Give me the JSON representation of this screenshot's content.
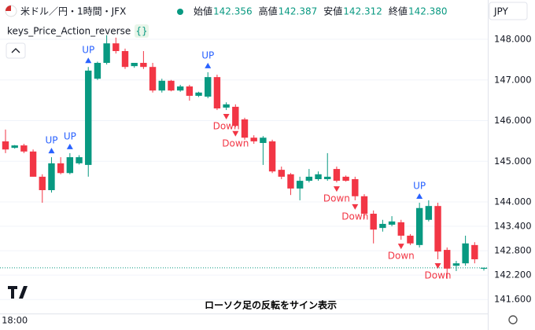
{
  "header": {
    "symbol": "米ドル／円・1時間・JFX",
    "currency": "JPY",
    "indicator": "keys_Price_Action_reverse",
    "indicator_badge": "{}",
    "caption": "ローソク足の反転をサイン表示"
  },
  "chart_data": {
    "type": "candlestick",
    "legend": {
      "labels": [
        "始値",
        "高値",
        "安値",
        "終値"
      ],
      "values": [
        142.356,
        142.387,
        142.312,
        142.38
      ],
      "value_labels": [
        "142.356",
        "142.387",
        "142.312",
        "142.380"
      ]
    },
    "categories": [
      null,
      "18:00",
      null,
      null,
      null,
      null,
      null,
      null,
      null,
      null,
      null,
      null,
      null,
      null,
      null,
      null,
      null,
      null,
      null,
      null,
      null,
      null,
      null,
      null,
      null,
      null,
      null,
      null,
      null,
      null,
      null,
      null,
      null,
      null,
      null,
      null,
      null,
      null,
      null,
      null,
      null,
      null,
      null,
      null,
      null,
      null,
      null,
      null,
      null,
      null,
      null,
      null,
      null
    ],
    "open": [
      145.49,
      145.33,
      145.39,
      145.24,
      144.62,
      144.29,
      144.95,
      144.71,
      144.95,
      144.91,
      147.03,
      147.42,
      147.9,
      147.71,
      147.34,
      147.42,
      147.32,
      146.74,
      146.98,
      146.74,
      146.84,
      146.61,
      146.59,
      147.07,
      146.32,
      146.34,
      146.03,
      145.58,
      145.45,
      145.49,
      144.79,
      144.68,
      144.33,
      144.52,
      144.56,
      144.56,
      144.81,
      144.62,
      144.56,
      144.14,
      143.71,
      143.36,
      143.44,
      143.5,
      143.17,
      142.94,
      143.56,
      143.9,
      142.82,
      142.43,
      142.49,
      142.94,
      142.356
    ],
    "high": [
      145.78,
      145.4,
      145.43,
      145.29,
      144.68,
      145.1,
      145.1,
      145.2,
      145.15,
      147.32,
      147.45,
      148.1,
      148.04,
      147.77,
      147.4,
      147.71,
      147.42,
      147.03,
      147.0,
      146.88,
      146.88,
      146.71,
      147.19,
      147.13,
      146.45,
      146.4,
      146.07,
      145.64,
      145.62,
      145.53,
      144.87,
      144.71,
      144.62,
      144.81,
      144.75,
      145.2,
      144.87,
      144.65,
      144.62,
      144.19,
      143.79,
      143.56,
      143.65,
      143.56,
      143.21,
      143.98,
      144.04,
      143.98,
      142.88,
      142.55,
      143.17,
      143.01,
      142.387
    ],
    "low": [
      145.2,
      145.31,
      145.2,
      144.62,
      143.98,
      144.23,
      144.68,
      144.68,
      144.92,
      144.62,
      147.0,
      147.38,
      147.65,
      147.27,
      147.3,
      147.27,
      146.69,
      146.69,
      146.72,
      146.71,
      146.49,
      146.58,
      146.55,
      146.26,
      146.26,
      145.84,
      145.53,
      145.43,
      144.91,
      144.71,
      144.56,
      144.17,
      144.04,
      144.48,
      144.52,
      144.52,
      144.48,
      144.5,
      144.04,
      143.59,
      142.98,
      143.27,
      143.4,
      143.07,
      142.94,
      142.88,
      143.52,
      142.59,
      142.11,
      142.3,
      142.43,
      142.49,
      142.312
    ],
    "close": [
      145.29,
      145.39,
      145.24,
      144.62,
      144.29,
      144.95,
      144.71,
      145.1,
      145.1,
      147.23,
      147.42,
      147.9,
      147.71,
      147.32,
      147.42,
      147.32,
      146.74,
      146.98,
      146.74,
      146.84,
      146.61,
      146.69,
      147.07,
      146.3,
      146.4,
      145.87,
      145.58,
      145.49,
      145.58,
      144.75,
      144.62,
      144.33,
      144.52,
      144.62,
      144.68,
      144.62,
      144.52,
      144.52,
      144.14,
      143.71,
      143.32,
      143.46,
      143.52,
      143.17,
      142.98,
      143.85,
      143.9,
      142.78,
      142.36,
      142.49,
      142.98,
      142.59,
      142.38
    ],
    "signals": [
      null,
      null,
      null,
      null,
      null,
      "UP",
      null,
      "UP",
      null,
      "UP",
      null,
      null,
      null,
      null,
      null,
      null,
      null,
      null,
      null,
      null,
      null,
      null,
      "UP",
      null,
      "Down",
      "Down",
      null,
      null,
      null,
      null,
      null,
      null,
      null,
      null,
      null,
      null,
      "Down",
      null,
      "Down",
      null,
      null,
      null,
      null,
      "Down",
      null,
      "UP",
      null,
      "Down",
      null,
      null,
      null,
      null,
      null
    ],
    "up_color": "#089981",
    "down_color": "#f23645",
    "up_signal_color": "#2962ff",
    "down_signal_color": "#f23645",
    "ylim": [
      141.2,
      148.4
    ],
    "yticks": [
      {
        "value": 148,
        "label": "148.000"
      },
      {
        "value": 147,
        "label": "147.000"
      },
      {
        "value": 146,
        "label": "146.000"
      },
      {
        "value": 145,
        "label": "145.000"
      },
      {
        "value": 144,
        "label": "144.000"
      },
      {
        "value": 143.4,
        "label": "143.400"
      },
      {
        "value": 142.8,
        "label": "142.800"
      },
      {
        "value": 142.2,
        "label": "142.200"
      },
      {
        "value": 141.6,
        "label": "141.600"
      }
    ]
  }
}
